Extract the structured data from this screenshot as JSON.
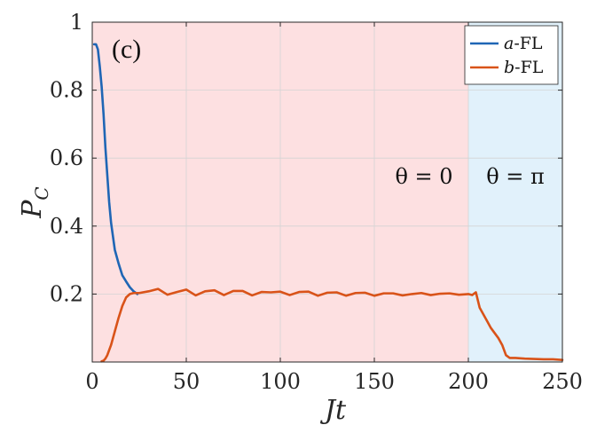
{
  "chart_data": {
    "type": "line",
    "panel_label": "(c)",
    "xlabel": "Jt",
    "ylabel": "P_C",
    "xlim": [
      0,
      250
    ],
    "ylim": [
      0,
      1
    ],
    "xticks": [
      0,
      50,
      100,
      150,
      200,
      250
    ],
    "yticks": [
      0.2,
      0.4,
      0.6,
      0.8,
      1
    ],
    "ytick_labels": [
      "0.2",
      "0.4",
      "0.6",
      "0.8",
      "1"
    ],
    "grid": true,
    "legend_position": "top-right",
    "regions": [
      {
        "x_range": [
          0,
          200
        ],
        "label": "θ = 0",
        "color": "#fde0e1"
      },
      {
        "x_range": [
          200,
          250
        ],
        "label": "θ = π",
        "color": "#e1f1fb"
      }
    ],
    "series": [
      {
        "name": "a-FL",
        "color": "#1f66b5",
        "x": [
          1,
          2,
          3,
          4,
          5,
          6,
          7,
          8,
          9,
          10,
          12,
          14,
          16,
          18,
          20,
          22,
          24
        ],
        "y": [
          0.935,
          0.935,
          0.92,
          0.87,
          0.81,
          0.73,
          0.63,
          0.55,
          0.47,
          0.41,
          0.33,
          0.29,
          0.255,
          0.237,
          0.22,
          0.208,
          0.2
        ]
      },
      {
        "name": "b-FL",
        "color": "#d95319",
        "x": [
          5,
          6,
          7,
          8,
          9,
          10,
          12,
          14,
          16,
          18,
          20,
          22,
          25,
          30,
          35,
          40,
          45,
          50,
          55,
          60,
          65,
          70,
          75,
          80,
          85,
          90,
          95,
          100,
          105,
          110,
          115,
          120,
          125,
          130,
          135,
          140,
          145,
          150,
          155,
          160,
          165,
          170,
          175,
          180,
          185,
          190,
          195,
          200,
          202,
          204,
          206,
          208,
          210,
          212,
          214,
          216,
          218,
          220,
          222,
          225,
          230,
          235,
          240,
          245,
          250
        ],
        "y": [
          0.002,
          0.004,
          0.01,
          0.02,
          0.035,
          0.05,
          0.09,
          0.13,
          0.165,
          0.19,
          0.2,
          0.203,
          0.203,
          0.208,
          0.215,
          0.198,
          0.206,
          0.213,
          0.196,
          0.208,
          0.211,
          0.197,
          0.209,
          0.209,
          0.196,
          0.206,
          0.205,
          0.207,
          0.197,
          0.206,
          0.207,
          0.195,
          0.204,
          0.205,
          0.195,
          0.203,
          0.204,
          0.195,
          0.202,
          0.202,
          0.196,
          0.2,
          0.203,
          0.197,
          0.201,
          0.202,
          0.198,
          0.2,
          0.197,
          0.205,
          0.16,
          0.14,
          0.12,
          0.1,
          0.085,
          0.07,
          0.05,
          0.02,
          0.012,
          0.012,
          0.01,
          0.009,
          0.008,
          0.008,
          0.006
        ]
      }
    ]
  }
}
